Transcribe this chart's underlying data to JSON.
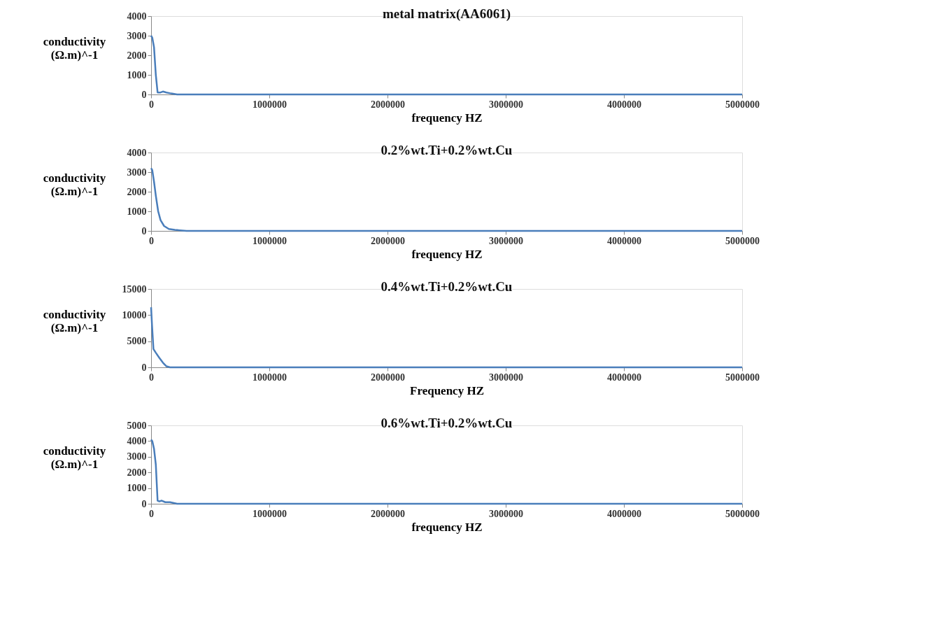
{
  "chart_data": [
    {
      "type": "line",
      "title": "metal matrix(AA6061)",
      "xlabel": "frequency HZ",
      "ylabel": "conductivity (Ω.m)^-1",
      "xlim": [
        0,
        5000000
      ],
      "xticks": [
        0,
        1000000,
        2000000,
        3000000,
        4000000,
        5000000
      ],
      "ylim": [
        0,
        4000
      ],
      "yticks": [
        0,
        1000,
        2000,
        3000,
        4000
      ],
      "grid": false,
      "marker": "none",
      "series": [
        {
          "color": "#4a7ebb",
          "x": [
            0,
            10000,
            25000,
            40000,
            55000,
            80000,
            100000,
            130000,
            170000,
            220000,
            400000,
            1000000,
            2000000,
            3000000,
            4000000,
            5000000
          ],
          "values": [
            3000,
            2900,
            2400,
            1000,
            100,
            100,
            150,
            100,
            50,
            0,
            0,
            0,
            0,
            0,
            0,
            0
          ]
        }
      ]
    },
    {
      "type": "line",
      "title": "0.2%wt.Ti+0.2%wt.Cu",
      "xlabel": "frequency HZ",
      "ylabel": "conductivity (Ω.m)^-1",
      "xlim": [
        0,
        5000000
      ],
      "xticks": [
        0,
        1000000,
        2000000,
        3000000,
        4000000,
        5000000
      ],
      "ylim": [
        0,
        4000
      ],
      "yticks": [
        0,
        1000,
        2000,
        3000,
        4000
      ],
      "grid": false,
      "marker": "none",
      "series": [
        {
          "color": "#4a7ebb",
          "x": [
            0,
            10000,
            25000,
            40000,
            60000,
            80000,
            110000,
            150000,
            200000,
            300000,
            500000,
            1000000,
            2000000,
            3000000,
            4000000,
            5000000
          ],
          "values": [
            3200,
            3100,
            2500,
            1800,
            1000,
            550,
            250,
            100,
            50,
            0,
            0,
            0,
            0,
            0,
            0,
            0
          ]
        }
      ]
    },
    {
      "type": "line",
      "title": "0.4%wt.Ti+0.2%wt.Cu",
      "xlabel": "Frequency HZ",
      "ylabel": "conductivity (Ω.m)^-1",
      "xlim": [
        0,
        5000000
      ],
      "xticks": [
        0,
        1000000,
        2000000,
        3000000,
        4000000,
        5000000
      ],
      "ylim": [
        0,
        15000
      ],
      "yticks": [
        0,
        5000,
        10000,
        15000
      ],
      "grid": false,
      "marker": "none",
      "series": [
        {
          "color": "#4a7ebb",
          "x": [
            0,
            8000,
            20000,
            40000,
            70000,
            100000,
            130000,
            160000,
            250000,
            500000,
            1000000,
            2000000,
            3000000,
            4000000,
            5000000
          ],
          "values": [
            11500,
            8000,
            3500,
            2800,
            1800,
            900,
            200,
            0,
            0,
            0,
            0,
            0,
            0,
            0,
            0
          ]
        }
      ]
    },
    {
      "type": "line",
      "title": "0.6%wt.Ti+0.2%wt.Cu",
      "xlabel": "frequency HZ",
      "ylabel": "conductivity (Ω.m)^-1",
      "xlim": [
        0,
        5000000
      ],
      "xticks": [
        0,
        1000000,
        2000000,
        3000000,
        4000000,
        5000000
      ],
      "ylim": [
        0,
        5000
      ],
      "yticks": [
        0,
        1000,
        2000,
        3000,
        4000,
        5000
      ],
      "grid": false,
      "marker": "none",
      "series": [
        {
          "color": "#4a7ebb",
          "x": [
            0,
            10000,
            25000,
            40000,
            55000,
            70000,
            90000,
            120000,
            160000,
            220000,
            400000,
            1000000,
            2000000,
            3000000,
            4000000,
            5000000
          ],
          "values": [
            4100,
            4000,
            3500,
            2500,
            200,
            150,
            200,
            100,
            100,
            0,
            0,
            0,
            0,
            0,
            0,
            0
          ]
        }
      ]
    }
  ]
}
